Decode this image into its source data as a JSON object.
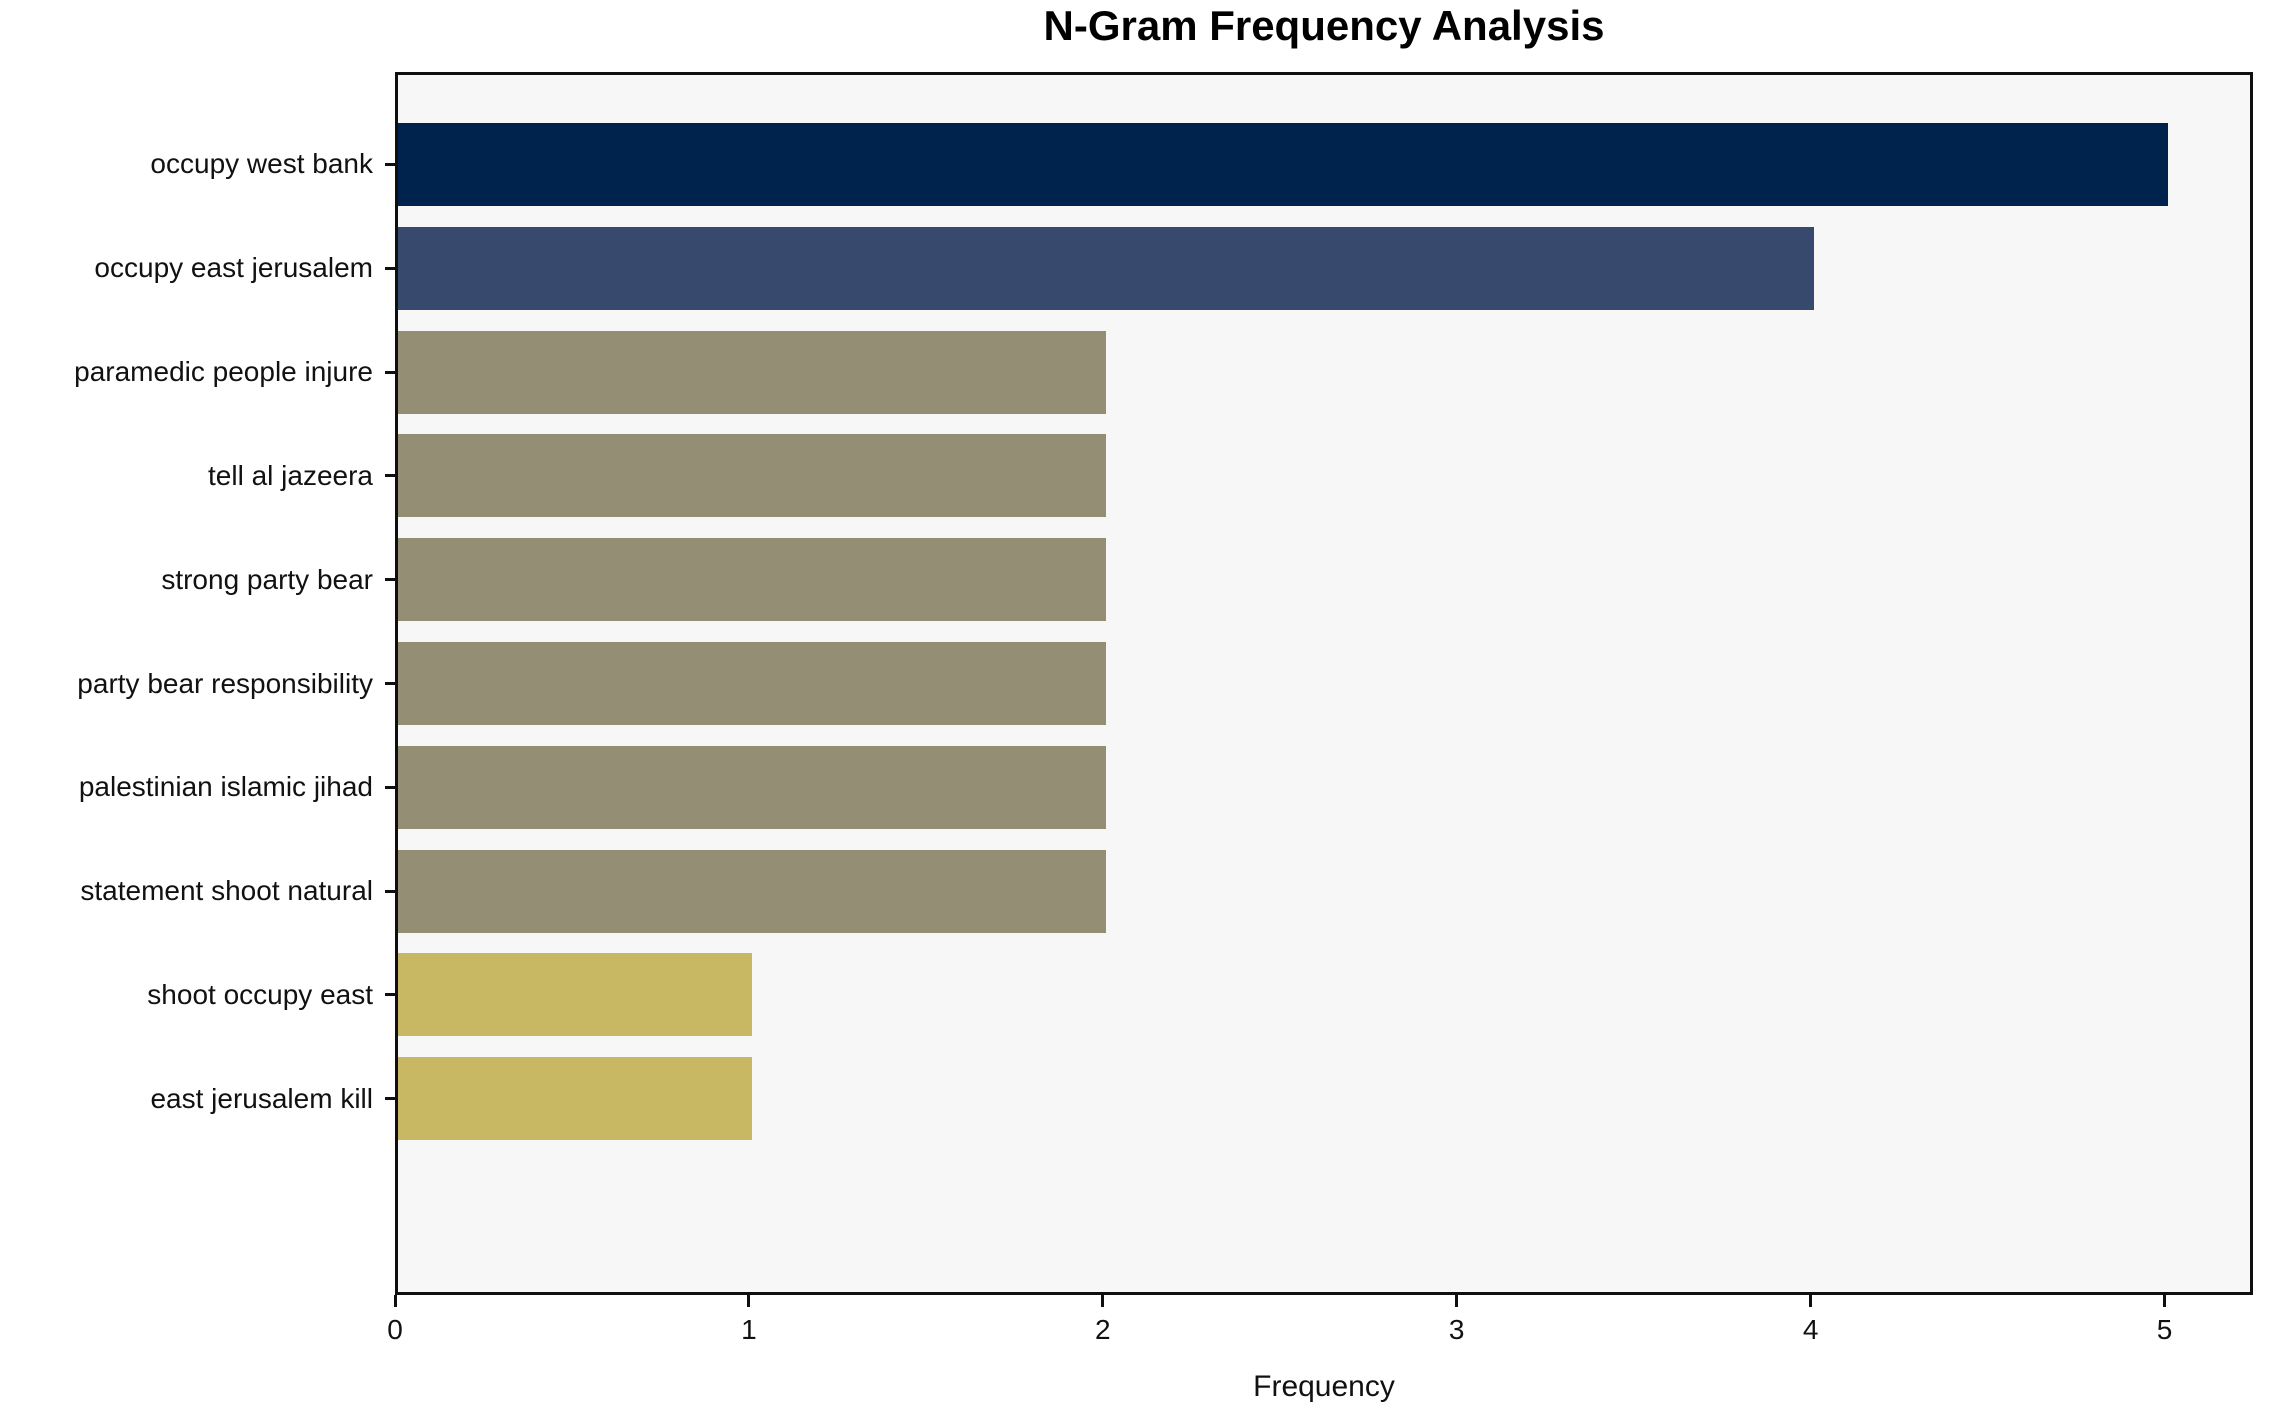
{
  "chart_data": {
    "type": "bar",
    "orientation": "horizontal",
    "title": "N-Gram Frequency Analysis",
    "xlabel": "Frequency",
    "ylabel": "",
    "categories": [
      "occupy west bank",
      "occupy east jerusalem",
      "paramedic people injure",
      "tell al jazeera",
      "strong party bear",
      "party bear responsibility",
      "palestinian islamic jihad",
      "statement shoot natural",
      "shoot occupy east",
      "east jerusalem kill"
    ],
    "values": [
      5,
      4,
      2,
      2,
      2,
      2,
      2,
      2,
      1,
      1
    ],
    "bar_colors": [
      "#00234d",
      "#374a6e",
      "#948e74",
      "#948e74",
      "#948e74",
      "#948e74",
      "#948e74",
      "#948e74",
      "#c9b863",
      "#c9b863"
    ],
    "x_ticks": [
      "0",
      "1",
      "2",
      "3",
      "4",
      "5"
    ],
    "xlim": [
      0,
      5.25
    ],
    "grid": false,
    "legend": null,
    "colors": {
      "plot_background": "#f7f7f8",
      "figure_background": "#ffffff",
      "spine": "#0f0f0f",
      "text": "#111111"
    }
  }
}
